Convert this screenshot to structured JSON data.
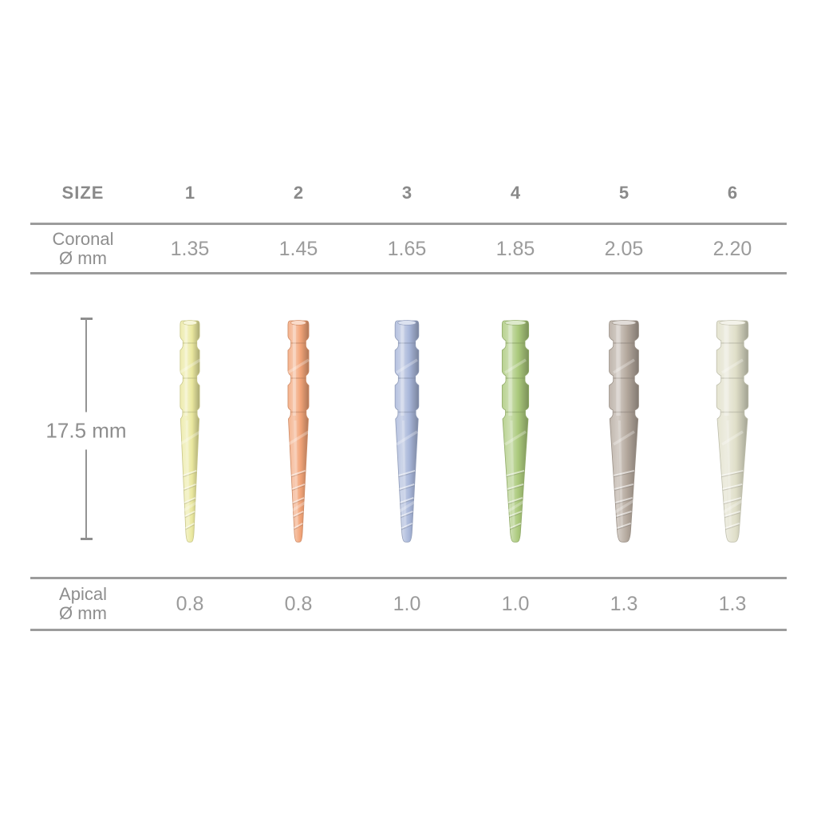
{
  "table": {
    "size_header": "SIZE",
    "coronal_label": [
      "Coronal",
      "Ø mm"
    ],
    "apical_label": [
      "Apical",
      "Ø mm"
    ],
    "length_label": "17.5 mm",
    "rule_color": "#9c9c9c",
    "header_text_color": "#8a8a8a",
    "value_text_color": "#9b9b9b",
    "columns": [
      {
        "size": "1",
        "coronal": "1.35",
        "apical": "0.8",
        "color": "#ebe9a0",
        "color_name": "yellow"
      },
      {
        "size": "2",
        "coronal": "1.45",
        "apical": "0.8",
        "color": "#f2a478",
        "color_name": "orange"
      },
      {
        "size": "3",
        "coronal": "1.65",
        "apical": "1.0",
        "color": "#a8b6d9",
        "color_name": "blue"
      },
      {
        "size": "4",
        "coronal": "1.85",
        "apical": "1.0",
        "color": "#abc97c",
        "color_name": "green"
      },
      {
        "size": "5",
        "coronal": "2.05",
        "apical": "1.3",
        "color": "#b4a89d",
        "color_name": "taupe"
      },
      {
        "size": "6",
        "coronal": "2.20",
        "apical": "1.3",
        "color": "#e0dfc9",
        "color_name": "ivory"
      }
    ]
  }
}
